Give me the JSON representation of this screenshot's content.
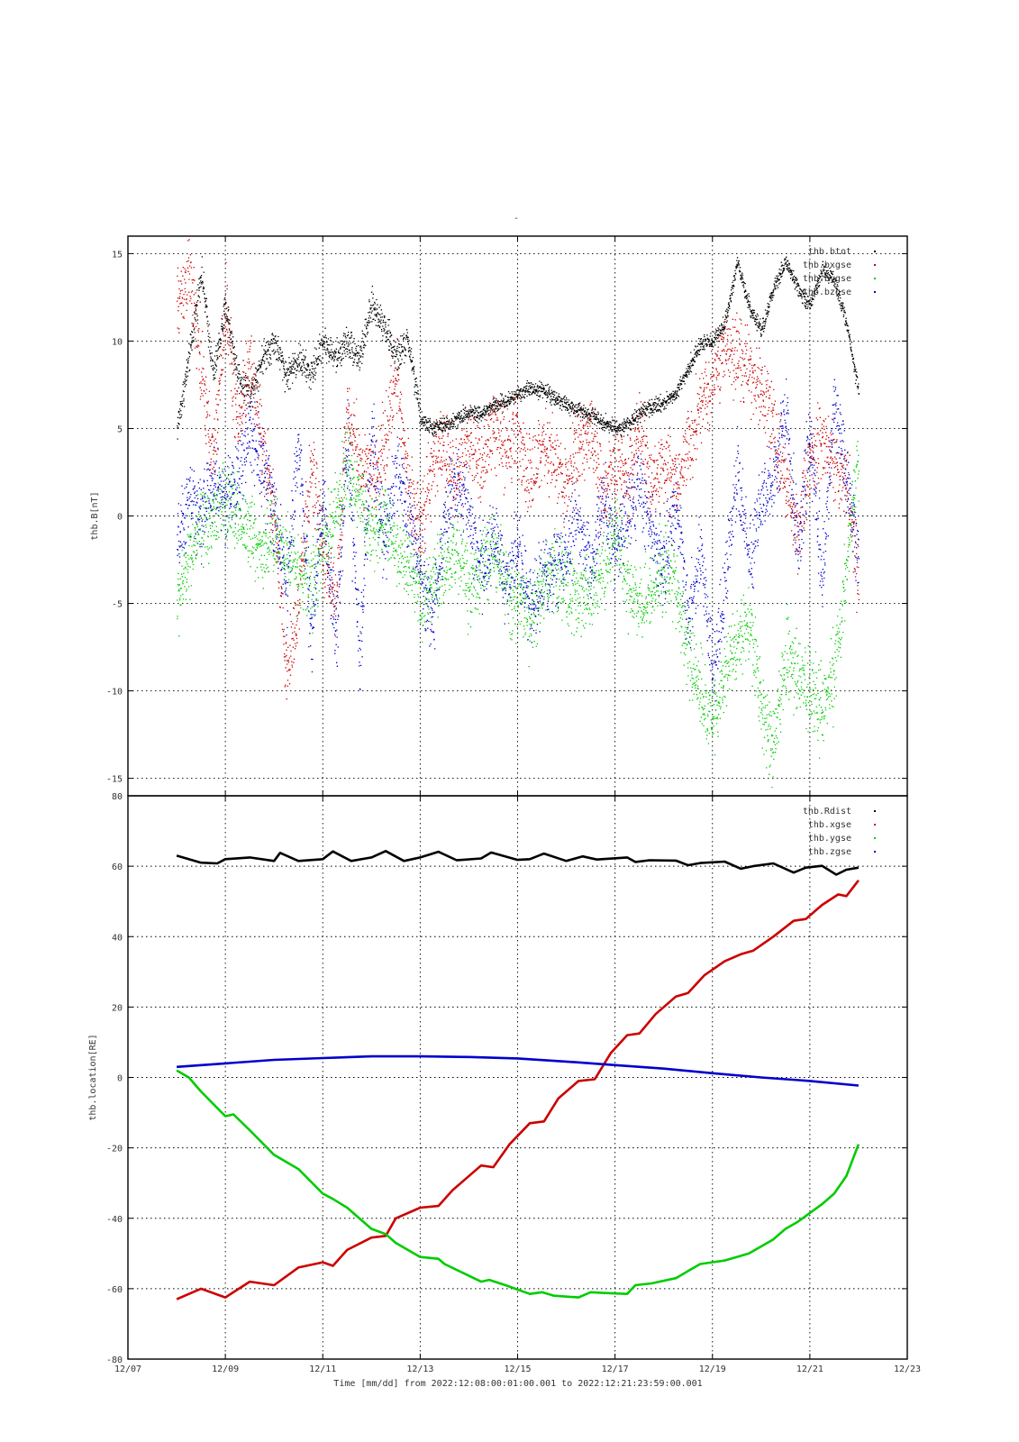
{
  "figure": {
    "top_mark": "-",
    "time_label": "Time [mm/dd]  from 2022:12:08:00:01:00.001  to  2022:12:21:23:59:00.001"
  },
  "chart_data": [
    {
      "type": "scatter",
      "ylabel": "thb.B[nT]",
      "ylim": [
        -16,
        16
      ],
      "yticks": [
        -15,
        -10,
        -5,
        0,
        5,
        10,
        15
      ],
      "xlim": [
        "12/07",
        "12/23"
      ],
      "xticks": [
        "12/07",
        "12/09",
        "12/11",
        "12/13",
        "12/15",
        "12/17",
        "12/19",
        "12/21",
        "12/23"
      ],
      "grid": true,
      "legend_position": "top-right",
      "series": [
        {
          "name": "thb.btot",
          "color": "#000000",
          "x": [
            "12/08 00:00",
            "12/08 06:00",
            "12/08 12:00",
            "12/08 18:00",
            "12/09 00:00",
            "12/09 06:00",
            "12/09 12:00",
            "12/09 18:00",
            "12/10 00:00",
            "12/10 06:00",
            "12/10 12:00",
            "12/10 18:00",
            "12/11 00:00",
            "12/11 06:00",
            "12/11 12:00",
            "12/11 18:00",
            "12/12 00:00",
            "12/12 06:00",
            "12/12 12:00",
            "12/12 18:00",
            "12/13 00:00",
            "12/13 06:00",
            "12/13 12:00",
            "12/13 18:00",
            "12/14 00:00",
            "12/14 06:00",
            "12/14 12:00",
            "12/14 18:00",
            "12/15 00:00",
            "12/15 06:00",
            "12/15 12:00",
            "12/15 18:00",
            "12/16 00:00",
            "12/16 06:00",
            "12/16 12:00",
            "12/16 18:00",
            "12/17 00:00",
            "12/17 06:00",
            "12/17 12:00",
            "12/17 18:00",
            "12/18 00:00",
            "12/18 06:00",
            "12/18 12:00",
            "12/18 18:00",
            "12/19 00:00",
            "12/19 06:00",
            "12/19 12:00",
            "12/19 18:00",
            "12/20 00:00",
            "12/20 06:00",
            "12/20 12:00",
            "12/20 18:00",
            "12/21 00:00",
            "12/21 06:00",
            "12/21 12:00",
            "12/21 18:00",
            "12/22 00:00"
          ],
          "y": [
            5,
            9,
            14,
            8,
            12,
            8,
            7,
            9,
            10,
            8,
            9,
            8,
            10,
            9,
            10,
            9,
            12,
            11,
            9,
            10,
            5.5,
            5,
            5.2,
            5.5,
            6,
            5.8,
            6.3,
            6.5,
            7,
            7.3,
            7.2,
            6.8,
            6.3,
            6,
            5.8,
            5.4,
            5,
            5.2,
            5.8,
            6.2,
            6.5,
            7,
            8.5,
            9.8,
            10,
            11,
            14.5,
            12,
            10.5,
            13,
            14.5,
            13,
            12,
            14,
            13.5,
            11,
            7
          ]
        },
        {
          "name": "thb.bxgse",
          "color": "#cc0000",
          "x": [
            "12/08 00:00",
            "12/08 06:00",
            "12/08 12:00",
            "12/08 18:00",
            "12/09 00:00",
            "12/09 06:00",
            "12/09 12:00",
            "12/09 18:00",
            "12/10 00:00",
            "12/10 06:00",
            "12/10 12:00",
            "12/10 18:00",
            "12/11 00:00",
            "12/11 06:00",
            "12/11 12:00",
            "12/11 18:00",
            "12/12 00:00",
            "12/12 06:00",
            "12/12 12:00",
            "12/12 18:00",
            "12/13 00:00",
            "12/13 06:00",
            "12/13 12:00",
            "12/13 18:00",
            "12/14 00:00",
            "12/14 06:00",
            "12/14 12:00",
            "12/14 18:00",
            "12/15 00:00",
            "12/15 06:00",
            "12/15 12:00",
            "12/15 18:00",
            "12/16 00:00",
            "12/16 06:00",
            "12/16 12:00",
            "12/16 18:00",
            "12/17 00:00",
            "12/17 06:00",
            "12/17 12:00",
            "12/17 18:00",
            "12/18 00:00",
            "12/18 06:00",
            "12/18 12:00",
            "12/18 18:00",
            "12/19 00:00",
            "12/19 06:00",
            "12/19 12:00",
            "12/19 18:00",
            "12/20 00:00",
            "12/20 06:00",
            "12/20 12:00",
            "12/20 18:00",
            "12/21 00:00",
            "12/21 06:00",
            "12/21 12:00",
            "12/21 18:00",
            "12/22 00:00"
          ],
          "y": [
            12,
            14,
            8,
            3,
            12,
            5,
            9,
            4,
            0,
            -9,
            -5,
            3,
            -2,
            -5,
            6,
            3,
            2,
            4,
            8,
            2,
            -1,
            3,
            4,
            2,
            4,
            3,
            5,
            4,
            5,
            2,
            4,
            3,
            2,
            4,
            5,
            1,
            3,
            2,
            5,
            2,
            3,
            2,
            4,
            6,
            8,
            9.5,
            9,
            8,
            7,
            5,
            2,
            -1,
            3,
            4,
            3,
            2,
            -4
          ]
        },
        {
          "name": "thb.bygse",
          "color": "#00cc00",
          "x": [
            "12/08 00:00",
            "12/08 06:00",
            "12/08 12:00",
            "12/08 18:00",
            "12/09 00:00",
            "12/09 06:00",
            "12/09 12:00",
            "12/09 18:00",
            "12/10 00:00",
            "12/10 06:00",
            "12/10 12:00",
            "12/10 18:00",
            "12/11 00:00",
            "12/11 06:00",
            "12/11 12:00",
            "12/11 18:00",
            "12/12 00:00",
            "12/12 06:00",
            "12/12 12:00",
            "12/12 18:00",
            "12/13 00:00",
            "12/13 06:00",
            "12/13 12:00",
            "12/13 18:00",
            "12/14 00:00",
            "12/14 06:00",
            "12/14 12:00",
            "12/14 18:00",
            "12/15 00:00",
            "12/15 06:00",
            "12/15 12:00",
            "12/15 18:00",
            "12/16 00:00",
            "12/16 06:00",
            "12/16 12:00",
            "12/16 18:00",
            "12/17 00:00",
            "12/17 06:00",
            "12/17 12:00",
            "12/17 18:00",
            "12/18 00:00",
            "12/18 06:00",
            "12/18 12:00",
            "12/18 18:00",
            "12/19 00:00",
            "12/19 06:00",
            "12/19 12:00",
            "12/19 18:00",
            "12/20 00:00",
            "12/20 06:00",
            "12/20 12:00",
            "12/20 18:00",
            "12/21 00:00",
            "12/21 06:00",
            "12/21 12:00",
            "12/21 18:00",
            "12/22 00:00"
          ],
          "y": [
            -5,
            -2,
            -1,
            0,
            1,
            0,
            -1,
            -2,
            -1,
            -2,
            -3,
            -4,
            -2,
            0,
            3,
            1,
            -1,
            0,
            -2,
            -3,
            -5,
            -4,
            -3,
            -2,
            -4,
            -3,
            -2,
            -4,
            -5,
            -6,
            -4,
            -3,
            -4,
            -5,
            -4,
            -3,
            -1,
            -4,
            -5,
            -4,
            -3,
            -4,
            -8,
            -10,
            -12,
            -9,
            -7,
            -6,
            -11,
            -13,
            -8,
            -9,
            -10,
            -11,
            -9,
            -3,
            4
          ]
        },
        {
          "name": "thb.bzgse",
          "color": "#0000cc",
          "x": [
            "12/08 00:00",
            "12/08 06:00",
            "12/08 12:00",
            "12/08 18:00",
            "12/09 00:00",
            "12/09 06:00",
            "12/09 12:00",
            "12/09 18:00",
            "12/10 00:00",
            "12/10 06:00",
            "12/10 12:00",
            "12/10 18:00",
            "12/11 00:00",
            "12/11 06:00",
            "12/11 12:00",
            "12/11 18:00",
            "12/12 00:00",
            "12/12 06:00",
            "12/12 12:00",
            "12/12 18:00",
            "12/13 00:00",
            "12/13 06:00",
            "12/13 12:00",
            "12/13 18:00",
            "12/14 00:00",
            "12/14 06:00",
            "12/14 12:00",
            "12/14 18:00",
            "12/15 00:00",
            "12/15 06:00",
            "12/15 12:00",
            "12/15 18:00",
            "12/16 00:00",
            "12/16 06:00",
            "12/16 12:00",
            "12/16 18:00",
            "12/17 00:00",
            "12/17 06:00",
            "12/17 12:00",
            "12/17 18:00",
            "12/18 00:00",
            "12/18 06:00",
            "12/18 12:00",
            "12/18 18:00",
            "12/19 00:00",
            "12/19 06:00",
            "12/19 12:00",
            "12/19 18:00",
            "12/20 00:00",
            "12/20 06:00",
            "12/20 12:00",
            "12/20 18:00",
            "12/21 00:00",
            "12/21 06:00",
            "12/21 12:00",
            "12/21 18:00",
            "12/22 00:00"
          ],
          "y": [
            -2,
            1,
            0,
            2,
            1,
            2,
            5,
            3,
            0,
            -4,
            4,
            -7,
            1,
            -7,
            4,
            -8,
            5,
            -2,
            3,
            0,
            -3,
            -6,
            0,
            2,
            0,
            -3,
            -1,
            -4,
            -2,
            -5,
            -4,
            -3,
            -2,
            0,
            -3,
            1,
            -2,
            0,
            2,
            -1,
            -3,
            1,
            -6,
            -2,
            -9,
            -4,
            3,
            -3,
            1,
            2,
            6,
            -2,
            5,
            -4,
            7,
            2,
            -3
          ]
        }
      ]
    },
    {
      "type": "line",
      "ylabel": "thb.location[RE]",
      "ylim": [
        -80,
        80
      ],
      "yticks": [
        -80,
        -60,
        -40,
        -20,
        0,
        20,
        40,
        60,
        80
      ],
      "xlim": [
        "12/07",
        "12/23"
      ],
      "xticks": [
        "12/07",
        "12/09",
        "12/11",
        "12/13",
        "12/15",
        "12/17",
        "12/19",
        "12/21",
        "12/23"
      ],
      "grid": true,
      "legend_position": "top-right",
      "series": [
        {
          "name": "thb.Rdist",
          "color": "#000000",
          "x": [
            "12/08 00:00",
            "12/08 12:00",
            "12/08 20:00",
            "12/09 00:00",
            "12/09 12:00",
            "12/10 00:00",
            "12/10 03:00",
            "12/10 12:00",
            "12/11 00:00",
            "12/11 05:00",
            "12/11 14:00",
            "12/12 00:00",
            "12/12 07:00",
            "12/12 16:00",
            "12/13 00:00",
            "12/13 09:00",
            "12/13 18:00",
            "12/14 06:00",
            "12/14 11:00",
            "12/15 00:00",
            "12/15 06:00",
            "12/15 13:00",
            "12/16 00:00",
            "12/16 08:00",
            "12/16 15:00",
            "12/17 06:00",
            "12/17 10:00",
            "12/17 17:00",
            "12/18 06:00",
            "12/18 12:00",
            "12/18 18:00",
            "12/19 06:00",
            "12/19 14:00",
            "12/19 20:00",
            "12/20 06:00",
            "12/20 16:00",
            "12/20 22:00",
            "12/21 06:00",
            "12/21 13:00",
            "12/21 18:00",
            "12/22 00:00"
          ],
          "y": [
            63,
            61,
            60.8,
            62,
            62.5,
            61.5,
            63.8,
            61.5,
            62,
            64.2,
            61.5,
            62.5,
            64.3,
            61.5,
            62.5,
            64.1,
            61.7,
            62.2,
            63.9,
            61.8,
            62,
            63.6,
            61.5,
            62.8,
            61.9,
            62.5,
            61.2,
            61.7,
            61.6,
            60.3,
            60.9,
            61.3,
            59.3,
            60,
            60.8,
            58.2,
            59.6,
            60.1,
            57.6,
            59,
            59.6
          ]
        },
        {
          "name": "thb.xgse",
          "color": "#cc0000",
          "x": [
            "12/08 00:00",
            "12/08 12:00",
            "12/09 00:00",
            "12/09 12:00",
            "12/10 00:00",
            "12/10 12:00",
            "12/11 00:00",
            "12/11 05:00",
            "12/11 12:00",
            "12/12 00:00",
            "12/12 07:00",
            "12/12 12:00",
            "12/13 00:00",
            "12/13 09:00",
            "12/13 16:00",
            "12/14 06:00",
            "12/14 12:00",
            "12/14 20:00",
            "12/15 06:00",
            "12/15 13:00",
            "12/15 20:00",
            "12/16 06:00",
            "12/16 14:00",
            "12/16 22:00",
            "12/17 06:00",
            "12/17 12:00",
            "12/17 20:00",
            "12/18 06:00",
            "12/18 12:00",
            "12/18 20:00",
            "12/19 06:00",
            "12/19 14:00",
            "12/19 20:00",
            "12/20 06:00",
            "12/20 16:00",
            "12/20 22:00",
            "12/21 06:00",
            "12/21 14:00",
            "12/21 18:00",
            "12/22 00:00"
          ],
          "y": [
            -63,
            -60,
            -62.5,
            -58,
            -59,
            -54,
            -52.5,
            -53.5,
            -49,
            -45.5,
            -45,
            -40,
            -37,
            -36.5,
            -32,
            -25,
            -25.5,
            -19,
            -13,
            -12.5,
            -6,
            -1,
            -0.5,
            7,
            12,
            12.5,
            18,
            23,
            24,
            29,
            33,
            35,
            36,
            40,
            44.5,
            45,
            49,
            52,
            51.5,
            56
          ]
        },
        {
          "name": "thb.ygse",
          "color": "#00cc00",
          "x": [
            "12/08 00:00",
            "12/08 06:00",
            "12/08 12:00",
            "12/09 00:00",
            "12/09 04:00",
            "12/09 12:00",
            "12/10 00:00",
            "12/10 03:00",
            "12/10 12:00",
            "12/11 00:00",
            "12/11 05:00",
            "12/11 12:00",
            "12/12 00:00",
            "12/12 07:00",
            "12/12 12:00",
            "12/13 00:00",
            "12/13 09:00",
            "12/13 12:00",
            "12/14 06:00",
            "12/14 10:00",
            "12/14 18:00",
            "12/15 06:00",
            "12/15 12:00",
            "12/15 18:00",
            "12/16 06:00",
            "12/16 12:00",
            "12/16 18:00",
            "12/17 06:00",
            "12/17 10:00",
            "12/17 18:00",
            "12/18 06:00",
            "12/18 12:00",
            "12/18 18:00",
            "12/19 06:00",
            "12/19 12:00",
            "12/19 18:00",
            "12/20 06:00",
            "12/20 12:00",
            "12/20 18:00",
            "12/21 06:00",
            "12/21 12:00",
            "12/21 18:00",
            "12/22 00:00"
          ],
          "y": [
            2,
            0,
            -4,
            -11,
            -10.5,
            -15,
            -22,
            -23,
            -26,
            -33,
            -34.5,
            -37,
            -43,
            -44.5,
            -47,
            -51,
            -51.5,
            -53,
            -58,
            -57.5,
            -59,
            -61.5,
            -61,
            -62,
            -62.5,
            -61,
            -61.2,
            -61.5,
            -59,
            -58.5,
            -57,
            -55,
            -53,
            -52,
            -51,
            -50,
            -46,
            -43,
            -41,
            -36,
            -33,
            -28,
            -19
          ]
        },
        {
          "name": "thb.zgse",
          "color": "#0000cc",
          "x": [
            "12/08 00:00",
            "12/09 00:00",
            "12/10 00:00",
            "12/11 00:00",
            "12/12 00:00",
            "12/13 00:00",
            "12/14 00:00",
            "12/15 00:00",
            "12/16 00:00",
            "12/17 00:00",
            "12/18 00:00",
            "12/19 00:00",
            "12/20 00:00",
            "12/21 00:00",
            "12/22 00:00"
          ],
          "y": [
            3,
            4,
            5,
            5.5,
            6,
            6,
            5.8,
            5.4,
            4.5,
            3.5,
            2.5,
            1.2,
            0,
            -1,
            -2.3
          ]
        }
      ]
    }
  ]
}
